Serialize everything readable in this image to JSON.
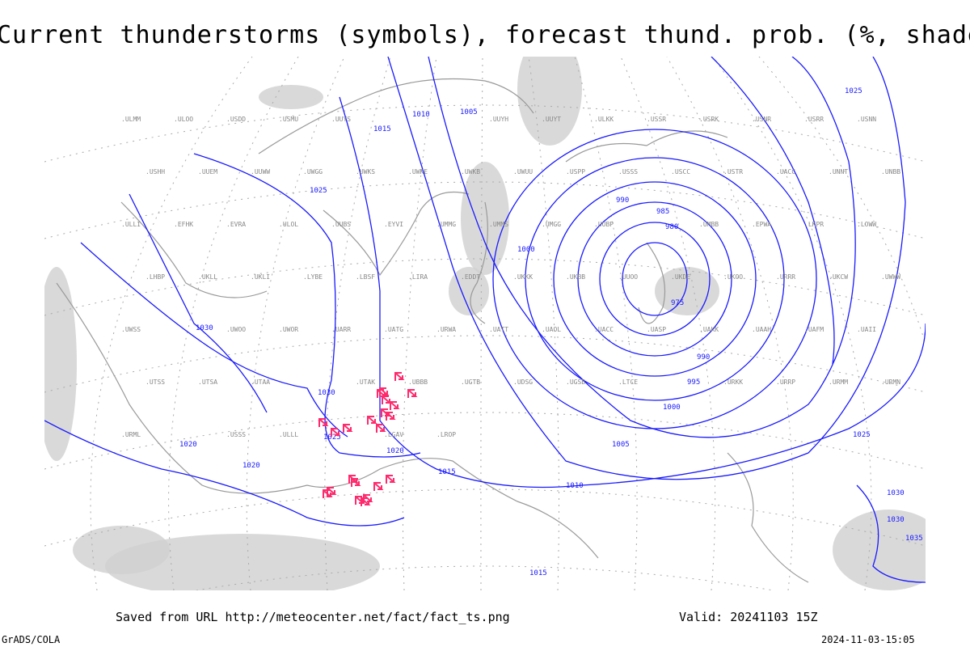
{
  "title": "Current thunderstorms (symbols), forecast thund. prob. (%, shaded)",
  "footer": {
    "saved_from": "Saved from URL http://meteocenter.net/fact/fact_ts.png",
    "valid": "Valid: 20241103 15Z",
    "credit": "GrADS/COLA",
    "timestamp": "2024-11-03-15:05"
  },
  "colors": {
    "isobar": "#1a1aff",
    "coast": "#999999",
    "shading": "#d0d0d0",
    "thunderstorm_symbol": "#ff2a6d"
  },
  "isobar_labels": [
    "975",
    "980",
    "985",
    "990",
    "990",
    "995",
    "1000",
    "1000",
    "1005",
    "1005",
    "1010",
    "1010",
    "1015",
    "1015",
    "1015",
    "1020",
    "1020",
    "1020",
    "1025",
    "1025",
    "1025",
    "1025",
    "1030",
    "1030",
    "1030",
    "1030",
    "1035"
  ],
  "stations": [
    "ULMM",
    "ULOO",
    "USDD",
    "USMU",
    "UUYS",
    "UUYH",
    "UUYT",
    "ULKK",
    "USSR",
    "USRK",
    "USNR",
    "USRR",
    "USNN",
    "USHH",
    "UUEM",
    "UUWW",
    "UWGG",
    "UWKS",
    "UWKE",
    "UWKB",
    "UWUU",
    "USPP",
    "USSS",
    "USCC",
    "USTR",
    "UACC",
    "UNNT",
    "UNBB",
    "ULLI",
    "EFHK",
    "EVRA",
    "ULOL",
    "UUBS",
    "EYVI",
    "UMMG",
    "UMMS",
    "UMGG",
    "UUBP",
    "UMBB",
    "EPWA",
    "LKPR",
    "LOWW",
    "LHBP",
    "UKLL",
    "UKLI",
    "LYBE",
    "LBSF",
    "LIRA",
    "EDDT",
    "UKKK",
    "UKBB",
    "UUOO",
    "UKDE",
    "UKOO",
    "URRR",
    "UKCW",
    "UWWW",
    "UWSS",
    "UWOO",
    "UWOR",
    "UARR",
    "UATG",
    "URWA",
    "UATT",
    "UAOL",
    "UACC",
    "UASP",
    "UAKK",
    "UAAH",
    "UAFM",
    "UAII",
    "UTSS",
    "UTSA",
    "UTAA",
    "UTAK",
    "UBBB",
    "UGTB",
    "UDSG",
    "UGSB",
    "LTCE",
    "URKK",
    "URRP",
    "URMM",
    "URMN",
    "URML",
    "USSS",
    "ULLL",
    "LGAV",
    "LROP"
  ],
  "thunderstorm_count": 22
}
